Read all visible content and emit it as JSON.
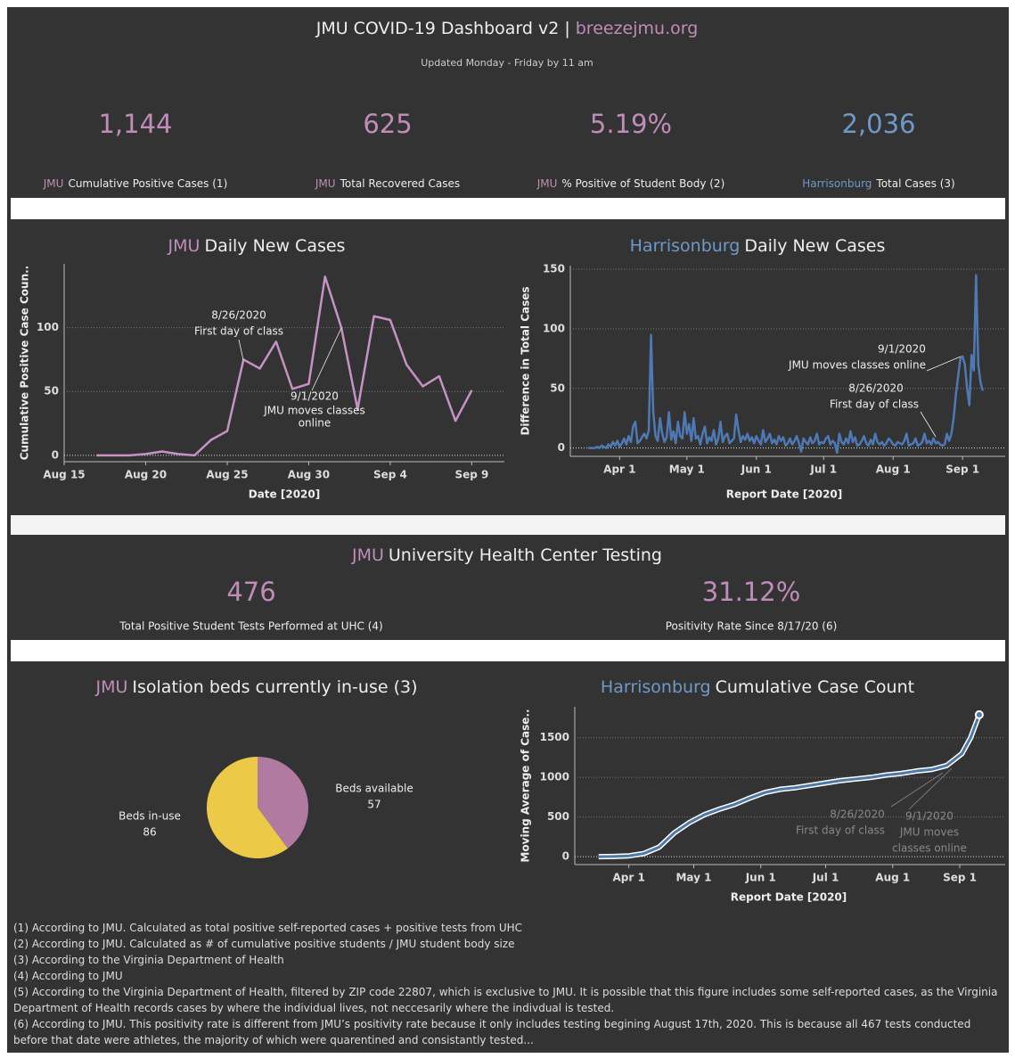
{
  "header": {
    "title": "JMU COVID-19 Dashboard v2 |",
    "link": "breezejmu.org",
    "subtitle": "Updated Monday - Friday by 11 am"
  },
  "kpis": [
    {
      "value": "1,144",
      "prefix": "JMU",
      "label": "Cumulative Positive Cases (1)",
      "color": "#c08cba"
    },
    {
      "value": "625",
      "prefix": "JMU",
      "label": "Total Recovered Cases",
      "color": "#c08cba"
    },
    {
      "value": "5.19%",
      "prefix": "JMU",
      "label": "% Positive of Student Body (2)",
      "color": "#c08cba"
    },
    {
      "value": "2,036",
      "prefix": "Harrisonburg",
      "label": "Total Cases (3)",
      "color": "#6f99c9"
    }
  ],
  "testing": {
    "prefix": "JMU",
    "title": "University Health Center Testing",
    "color": "#c08cba",
    "kpis": [
      {
        "value": "476",
        "label": "Total Positive Student Tests Performed at UHC (4)"
      },
      {
        "value": "31.12%",
        "label": "Positivity Rate Since 8/17/20 (6)"
      }
    ]
  },
  "chart_data": [
    {
      "type": "line",
      "title_prefix": "JMU",
      "prefix_color": "#c08cba",
      "title": "Daily New Cases",
      "x_label": "Date [2020]",
      "y_label": "Cumulative Positive Case Coun..",
      "x": [
        "2020-08-17",
        "2020-08-18",
        "2020-08-19",
        "2020-08-20",
        "2020-08-21",
        "2020-08-22",
        "2020-08-23",
        "2020-08-24",
        "2020-08-25",
        "2020-08-26",
        "2020-08-27",
        "2020-08-28",
        "2020-08-29",
        "2020-08-30",
        "2020-08-31",
        "2020-09-01",
        "2020-09-02",
        "2020-09-03",
        "2020-09-04",
        "2020-09-05",
        "2020-09-06",
        "2020-09-07",
        "2020-09-08",
        "2020-09-09"
      ],
      "series": [
        {
          "color": "#c792c4",
          "values": [
            0,
            0,
            0,
            1,
            3,
            1,
            0,
            12,
            19,
            75,
            68,
            89,
            52,
            56,
            140,
            100,
            36,
            109,
            106,
            71,
            54,
            62,
            27,
            51
          ]
        }
      ],
      "xlim": [
        "2020-08-15",
        "2020-09-11"
      ],
      "xticks": [
        {
          "value": "2020-08-15",
          "label": "Aug 15"
        },
        {
          "value": "2020-08-20",
          "label": "Aug 20"
        },
        {
          "value": "2020-08-25",
          "label": "Aug 25"
        },
        {
          "value": "2020-08-30",
          "label": "Aug 30"
        },
        {
          "value": "2020-09-04",
          "label": "Sep 4"
        },
        {
          "value": "2020-09-09",
          "label": "Sep 9"
        }
      ],
      "ylim": [
        -5,
        150
      ],
      "yticks": [
        0,
        50,
        100
      ],
      "grid": true,
      "annotations": [
        [
          "8/26/2020",
          "First day of class"
        ],
        [
          "9/1/2020",
          "JMU moves classes",
          "online"
        ]
      ]
    },
    {
      "type": "line",
      "title_prefix": "Harrisonburg",
      "prefix_color": "#6f99c9",
      "title": "Daily New Cases",
      "x_label": "Report Date [2020]",
      "y_label": "Difference in Total Cases",
      "x": [
        "2020-03-18",
        "2020-03-19",
        "2020-03-20",
        "2020-03-21",
        "2020-03-22",
        "2020-03-23",
        "2020-03-24",
        "2020-03-25",
        "2020-03-26",
        "2020-03-27",
        "2020-03-28",
        "2020-03-29",
        "2020-03-30",
        "2020-03-31",
        "2020-04-01",
        "2020-04-02",
        "2020-04-03",
        "2020-04-04",
        "2020-04-05",
        "2020-04-06",
        "2020-04-07",
        "2020-04-08",
        "2020-04-09",
        "2020-04-10",
        "2020-04-11",
        "2020-04-12",
        "2020-04-13",
        "2020-04-14",
        "2020-04-15",
        "2020-04-16",
        "2020-04-17",
        "2020-04-18",
        "2020-04-19",
        "2020-04-20",
        "2020-04-21",
        "2020-04-22",
        "2020-04-23",
        "2020-04-24",
        "2020-04-25",
        "2020-04-26",
        "2020-04-27",
        "2020-04-28",
        "2020-04-29",
        "2020-04-30",
        "2020-05-01",
        "2020-05-02",
        "2020-05-03",
        "2020-05-04",
        "2020-05-05",
        "2020-05-06",
        "2020-05-07",
        "2020-05-08",
        "2020-05-09",
        "2020-05-10",
        "2020-05-11",
        "2020-05-12",
        "2020-05-13",
        "2020-05-14",
        "2020-05-15",
        "2020-05-16",
        "2020-05-17",
        "2020-05-18",
        "2020-05-19",
        "2020-05-20",
        "2020-05-21",
        "2020-05-22",
        "2020-05-23",
        "2020-05-24",
        "2020-05-25",
        "2020-05-26",
        "2020-05-27",
        "2020-05-28",
        "2020-05-29",
        "2020-05-30",
        "2020-05-31",
        "2020-06-01",
        "2020-06-02",
        "2020-06-03",
        "2020-06-04",
        "2020-06-05",
        "2020-06-06",
        "2020-06-07",
        "2020-06-08",
        "2020-06-09",
        "2020-06-10",
        "2020-06-11",
        "2020-06-12",
        "2020-06-13",
        "2020-06-14",
        "2020-06-15",
        "2020-06-16",
        "2020-06-17",
        "2020-06-18",
        "2020-06-19",
        "2020-06-20",
        "2020-06-21",
        "2020-06-22",
        "2020-06-23",
        "2020-06-24",
        "2020-06-25",
        "2020-06-26",
        "2020-06-27",
        "2020-06-28",
        "2020-06-29",
        "2020-06-30",
        "2020-07-01",
        "2020-07-02",
        "2020-07-03",
        "2020-07-04",
        "2020-07-05",
        "2020-07-06",
        "2020-07-07",
        "2020-07-08",
        "2020-07-09",
        "2020-07-10",
        "2020-07-11",
        "2020-07-12",
        "2020-07-13",
        "2020-07-14",
        "2020-07-15",
        "2020-07-16",
        "2020-07-17",
        "2020-07-18",
        "2020-07-19",
        "2020-07-20",
        "2020-07-21",
        "2020-07-22",
        "2020-07-23",
        "2020-07-24",
        "2020-07-25",
        "2020-07-26",
        "2020-07-27",
        "2020-07-28",
        "2020-07-29",
        "2020-07-30",
        "2020-07-31",
        "2020-08-01",
        "2020-08-02",
        "2020-08-03",
        "2020-08-04",
        "2020-08-05",
        "2020-08-06",
        "2020-08-07",
        "2020-08-08",
        "2020-08-09",
        "2020-08-10",
        "2020-08-11",
        "2020-08-12",
        "2020-08-13",
        "2020-08-14",
        "2020-08-15",
        "2020-08-16",
        "2020-08-17",
        "2020-08-18",
        "2020-08-19",
        "2020-08-20",
        "2020-08-21",
        "2020-08-22",
        "2020-08-23",
        "2020-08-24",
        "2020-08-25",
        "2020-08-26",
        "2020-08-27",
        "2020-08-28",
        "2020-08-29",
        "2020-08-30",
        "2020-08-31",
        "2020-09-01",
        "2020-09-02",
        "2020-09-03",
        "2020-09-04",
        "2020-09-05",
        "2020-09-06",
        "2020-09-07",
        "2020-09-08",
        "2020-09-09",
        "2020-09-10"
      ],
      "series": [
        {
          "color": "#4e79b5",
          "values": [
            0,
            0,
            0,
            0,
            1,
            0,
            2,
            1,
            0,
            3,
            1,
            5,
            2,
            6,
            1,
            4,
            8,
            3,
            10,
            5,
            18,
            22,
            4,
            6,
            9,
            12,
            8,
            15,
            95,
            30,
            10,
            6,
            25,
            12,
            5,
            9,
            30,
            7,
            14,
            4,
            22,
            10,
            8,
            30,
            12,
            20,
            6,
            25,
            8,
            10,
            3,
            12,
            18,
            4,
            9,
            6,
            15,
            3,
            8,
            22,
            5,
            10,
            12,
            4,
            6,
            8,
            28,
            15,
            5,
            10,
            7,
            12,
            6,
            9,
            4,
            10,
            6,
            3,
            15,
            5,
            8,
            12,
            4,
            7,
            3,
            10,
            6,
            9,
            2,
            4,
            8,
            3,
            6,
            10,
            4,
            -3,
            8,
            5,
            3,
            9,
            4,
            6,
            12,
            3,
            5,
            4,
            8,
            10,
            3,
            6,
            4,
            -4,
            12,
            5,
            3,
            8,
            4,
            14,
            5,
            9,
            2,
            3,
            6,
            10,
            4,
            2,
            7,
            3,
            12,
            5,
            3,
            5,
            2,
            4,
            8,
            6,
            3,
            2,
            5,
            4,
            3,
            6,
            12,
            2,
            3,
            4,
            8,
            2,
            3,
            5,
            12,
            4,
            6,
            3,
            8,
            4,
            5,
            3,
            2,
            3,
            12,
            6,
            12,
            25,
            45,
            60,
            75,
            77,
            70,
            50,
            36,
            78,
            65,
            145,
            70,
            55,
            48
          ]
        }
      ],
      "xlim": [
        "2020-03-10",
        "2020-09-20"
      ],
      "xticks": [
        {
          "value": "2020-04-01",
          "label": "Apr 1"
        },
        {
          "value": "2020-05-01",
          "label": "May 1"
        },
        {
          "value": "2020-06-01",
          "label": "Jun 1"
        },
        {
          "value": "2020-07-01",
          "label": "Jul 1"
        },
        {
          "value": "2020-08-01",
          "label": "Aug 1"
        },
        {
          "value": "2020-09-01",
          "label": "Sep 1"
        }
      ],
      "ylim": [
        -7,
        153
      ],
      "yticks": [
        0,
        50,
        100,
        150
      ],
      "grid": true,
      "annotations": [
        [
          "9/1/2020",
          "JMU moves classes online"
        ],
        [
          "8/26/2020",
          "First day of class"
        ]
      ]
    },
    {
      "type": "pie",
      "title_prefix": "JMU",
      "prefix_color": "#c08cba",
      "title": "Isolation beds currently in-use (3)",
      "categories": [
        "Beds available",
        "Beds in-use"
      ],
      "values": [
        57,
        86
      ],
      "colors": [
        "#b07aa1",
        "#edc948"
      ]
    },
    {
      "type": "line",
      "title_prefix": "Harrisonburg",
      "prefix_color": "#6f99c9",
      "title": "Cumulative Case Count",
      "x_label": "Report Date [2020]",
      "y_label": "Moving Average of Case..",
      "x": [
        "2020-03-18",
        "2020-03-25",
        "2020-04-01",
        "2020-04-08",
        "2020-04-15",
        "2020-04-22",
        "2020-04-29",
        "2020-05-06",
        "2020-05-13",
        "2020-05-20",
        "2020-05-27",
        "2020-06-03",
        "2020-06-10",
        "2020-06-17",
        "2020-06-24",
        "2020-07-01",
        "2020-07-08",
        "2020-07-15",
        "2020-07-22",
        "2020-07-29",
        "2020-08-05",
        "2020-08-12",
        "2020-08-19",
        "2020-08-26",
        "2020-09-02",
        "2020-09-06",
        "2020-09-10"
      ],
      "series": [
        {
          "color": "#4e79a7",
          "values": [
            0,
            3,
            10,
            40,
            120,
            300,
            430,
            530,
            600,
            660,
            740,
            810,
            850,
            870,
            900,
            930,
            960,
            980,
            1000,
            1030,
            1050,
            1080,
            1100,
            1150,
            1300,
            1500,
            1790
          ]
        }
      ],
      "xlim": [
        "2020-03-07",
        "2020-09-22"
      ],
      "xticks": [
        {
          "value": "2020-04-01",
          "label": "Apr 1"
        },
        {
          "value": "2020-05-01",
          "label": "May 1"
        },
        {
          "value": "2020-06-01",
          "label": "Jun 1"
        },
        {
          "value": "2020-07-01",
          "label": "Jul 1"
        },
        {
          "value": "2020-08-01",
          "label": "Aug 1"
        },
        {
          "value": "2020-09-01",
          "label": "Sep 1"
        }
      ],
      "ylim": [
        -100,
        1890
      ],
      "yticks": [
        0,
        500,
        1000,
        1500
      ],
      "grid": true,
      "annotations": [
        [
          "8/26/2020",
          "First day of class"
        ],
        [
          "9/1/2020",
          "JMU moves",
          "classes online"
        ]
      ]
    }
  ],
  "footnotes": [
    "(1) According to JMU. Calculated as total positive self-reported cases + positive tests from UHC",
    "(2) According to JMU. Calculated as # of cumulative positive students / JMU student body size",
    "(3) According to the Virginia Department of Health",
    "(4) According to JMU",
    "(5) According to the Virginia Department of Health, filtered by ZIP code 22807, which is exclusive to JMU. It is possible that this figure includes some self-reported cases, as the Virginia Department of Health records cases by where the individual lives, not neccesarily where the indivdual is tested.",
    "(6) According to JMU. This positivity rate is different from JMU’s positivity rate because it only includes testing begining August 17th, 2020. This is because all 467 tests conducted before that date were athletes, the majority of which were quarentined and consistantly tested..."
  ]
}
